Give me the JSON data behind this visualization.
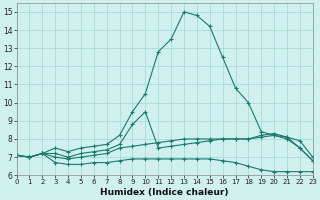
{
  "x": [
    0,
    1,
    2,
    3,
    4,
    5,
    6,
    7,
    8,
    9,
    10,
    11,
    12,
    13,
    14,
    15,
    16,
    17,
    18,
    19,
    20,
    21,
    22,
    23
  ],
  "line_max": [
    7.1,
    7.0,
    7.2,
    7.5,
    7.3,
    7.5,
    7.6,
    7.7,
    8.2,
    9.5,
    10.5,
    12.8,
    13.5,
    15.0,
    14.8,
    14.2,
    12.5,
    10.8,
    10.0,
    8.4,
    8.2,
    8.0,
    7.5,
    6.8
  ],
  "line_upper_mid": [
    7.1,
    7.0,
    7.2,
    7.2,
    7.0,
    7.2,
    7.3,
    7.4,
    7.7,
    8.8,
    9.5,
    7.5,
    7.6,
    7.7,
    7.8,
    7.9,
    8.0,
    8.0,
    8.0,
    8.2,
    8.3,
    8.1,
    7.5,
    6.8
  ],
  "line_mean": [
    7.1,
    7.0,
    7.2,
    7.0,
    6.9,
    7.0,
    7.1,
    7.2,
    7.5,
    7.6,
    7.7,
    7.8,
    7.9,
    8.0,
    8.0,
    8.0,
    8.0,
    8.0,
    8.0,
    8.1,
    8.2,
    8.1,
    7.9,
    7.0
  ],
  "line_min": [
    7.1,
    7.0,
    7.2,
    6.7,
    6.6,
    6.6,
    6.7,
    6.7,
    6.8,
    6.9,
    6.9,
    6.9,
    6.9,
    6.9,
    6.9,
    6.9,
    6.8,
    6.7,
    6.5,
    6.3,
    6.2,
    6.2,
    6.2,
    6.2
  ],
  "line_color": "#1a7a6e",
  "bg_color": "#cff0ec",
  "grid_color": "#a8dcd8",
  "xlabel": "Humidex (Indice chaleur)",
  "ylim": [
    6,
    15.5
  ],
  "xlim": [
    0,
    23
  ],
  "yticks": [
    6,
    7,
    8,
    9,
    10,
    11,
    12,
    13,
    14,
    15
  ],
  "xticks": [
    0,
    1,
    2,
    3,
    4,
    5,
    6,
    7,
    8,
    9,
    10,
    11,
    12,
    13,
    14,
    15,
    16,
    17,
    18,
    19,
    20,
    21,
    22,
    23
  ]
}
